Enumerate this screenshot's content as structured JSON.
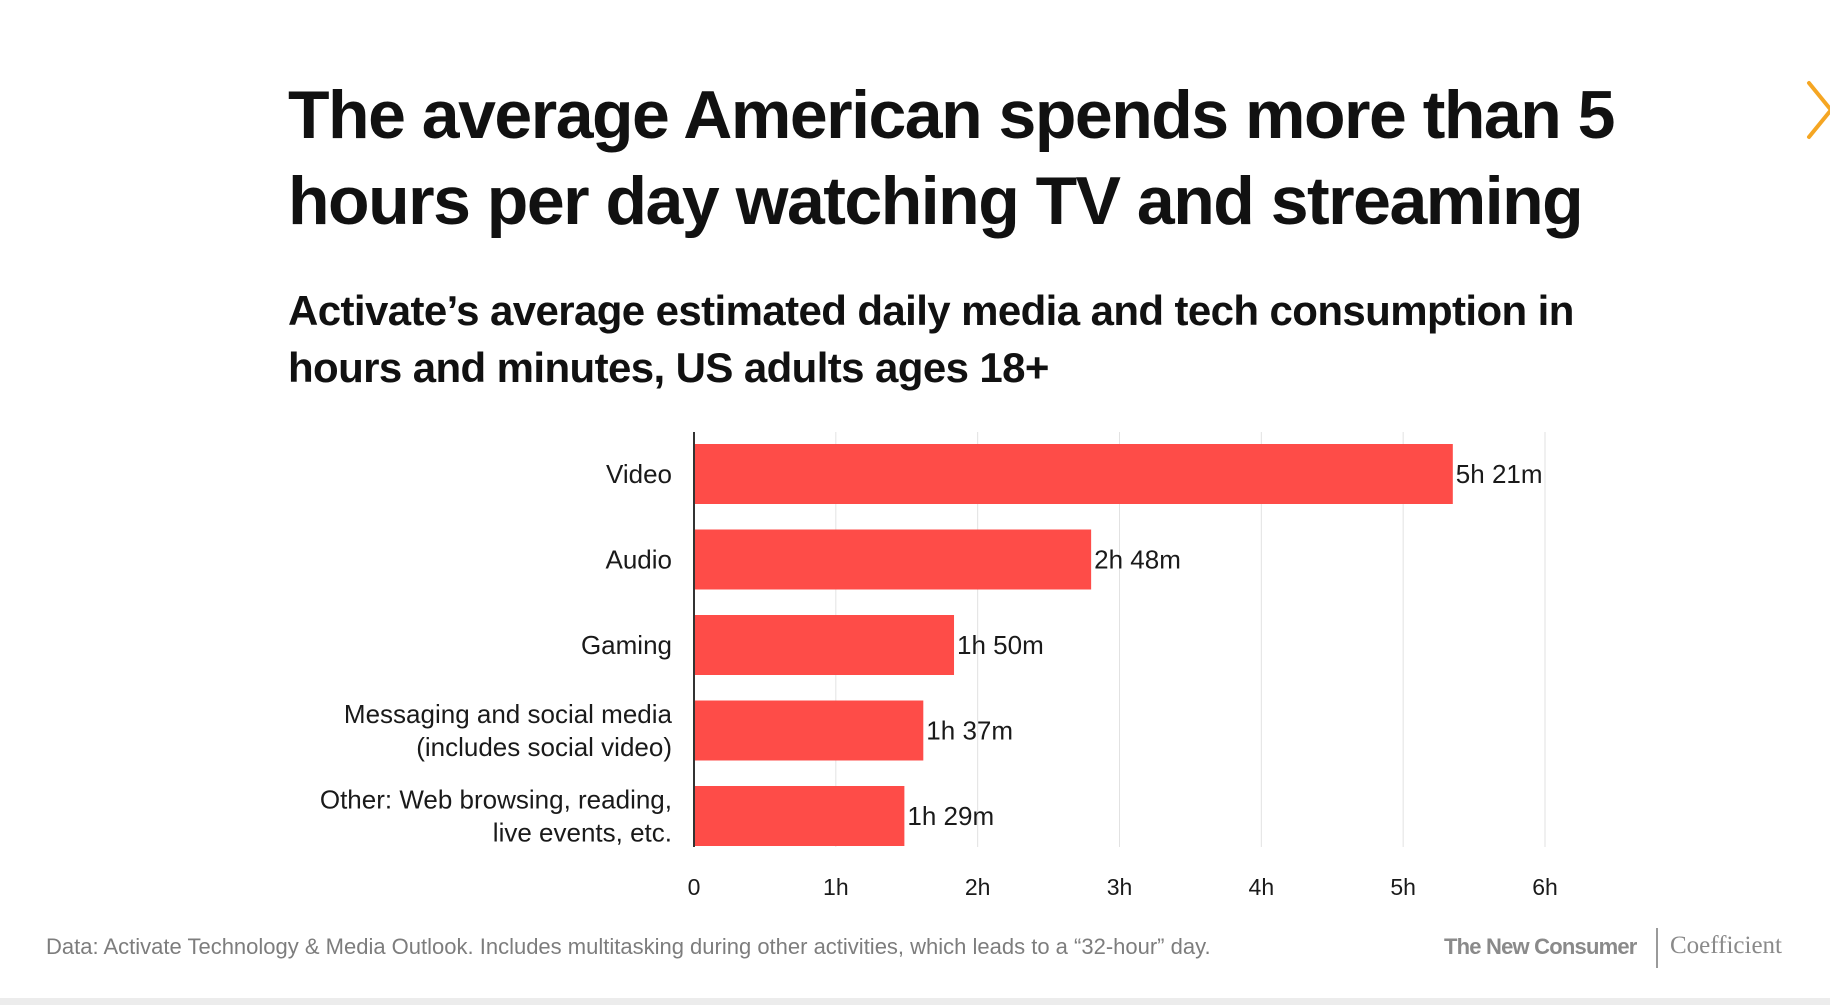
{
  "title": "The average American spends more than 5 hours per day watching TV and streaming",
  "subtitle": "Activate’s average estimated daily media and tech consumption in hours and minutes, US adults ages 18+",
  "chart_data": {
    "type": "bar",
    "orientation": "horizontal",
    "categories": [
      [
        "Video"
      ],
      [
        "Audio"
      ],
      [
        "Gaming"
      ],
      [
        "Messaging and social media",
        "(includes social video)"
      ],
      [
        "Other: Web browsing, reading,",
        "live events, etc."
      ]
    ],
    "values": [
      5.35,
      2.8,
      1.8333,
      1.6167,
      1.4833
    ],
    "value_labels": [
      "5h 21m",
      "2h 48m",
      "1h 50m",
      "1h 37m",
      "1h 29m"
    ],
    "xlim": [
      0,
      6
    ],
    "x_ticks": [
      0,
      1,
      2,
      3,
      4,
      5,
      6
    ],
    "x_tick_labels": [
      "0",
      "1h",
      "2h",
      "3h",
      "4h",
      "5h",
      "6h"
    ],
    "grid": "vertical",
    "bar_color": "#fe4c48"
  },
  "footer": {
    "note": "Data: Activate Technology & Media Outlook. Includes multitasking during other activities, which leads to a “32-hour” day.",
    "brand_left": "The New Consumer",
    "brand_right": "Coefficient"
  },
  "colors": {
    "accent_arrow": "#f5a623",
    "grid": "#e2e2e2",
    "axis": "#333333",
    "footer_text": "#7d7d7d"
  },
  "icons": {
    "next": "chevron-right-icon"
  }
}
